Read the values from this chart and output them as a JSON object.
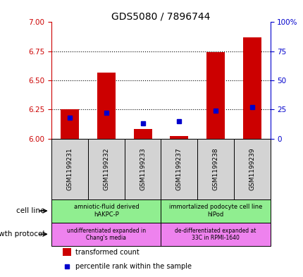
{
  "title": "GDS5080 / 7896744",
  "samples": [
    "GSM1199231",
    "GSM1199232",
    "GSM1199233",
    "GSM1199237",
    "GSM1199238",
    "GSM1199239"
  ],
  "transformed_counts": [
    6.25,
    6.57,
    6.08,
    6.02,
    6.74,
    6.87
  ],
  "percentile_ranks": [
    18,
    22,
    13,
    15,
    24,
    27
  ],
  "ylim_left": [
    6.0,
    7.0
  ],
  "ylim_right": [
    0,
    100
  ],
  "yticks_left": [
    6.0,
    6.25,
    6.5,
    6.75,
    7.0
  ],
  "yticks_right": [
    0,
    25,
    50,
    75,
    100
  ],
  "bar_color": "#cc0000",
  "dot_color": "#0000cc",
  "cell_line_label": "cell line",
  "growth_protocol_label": "growth protocol",
  "legend_bar_label": "transformed count",
  "legend_dot_label": "percentile rank within the sample",
  "tick_color_left": "#cc0000",
  "tick_color_right": "#0000cc",
  "base_value": 6.0,
  "cell_line_color": "#90ee90",
  "growth_protocol_color": "#ee82ee",
  "sample_box_color": "#d3d3d3"
}
